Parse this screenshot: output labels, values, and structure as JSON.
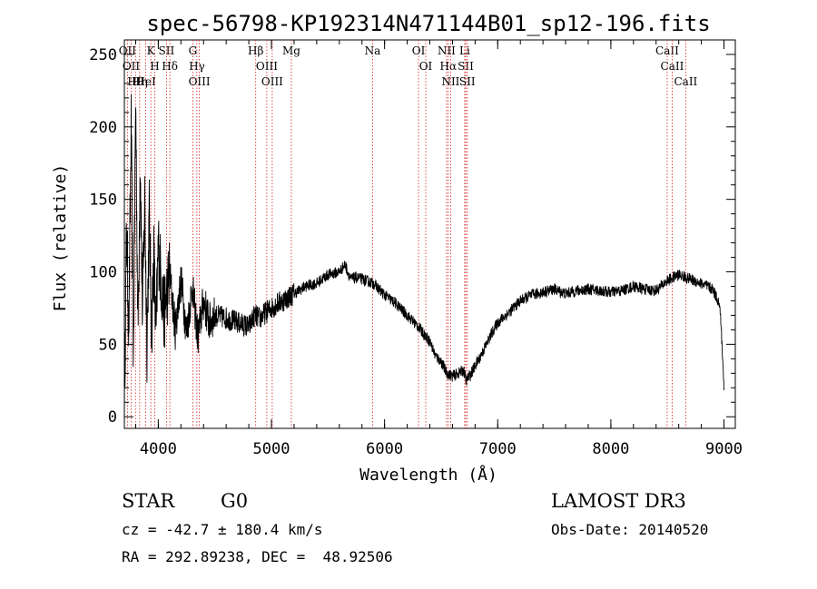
{
  "chart_data": {
    "type": "line",
    "title": "spec-56798-KP192314N471144B01_sp12-196.fits",
    "xlabel": "Wavelength (Å)",
    "ylabel": "Flux (relative)",
    "xlim": [
      3700,
      9100
    ],
    "ylim": [
      -8,
      260
    ],
    "x_ticks": [
      4000,
      5000,
      6000,
      7000,
      8000,
      9000
    ],
    "y_ticks": [
      0,
      50,
      100,
      150,
      200,
      250
    ],
    "grid": false,
    "series": [
      {
        "x": [
          3700,
          3720,
          3740,
          3760,
          3780,
          3800,
          3820,
          3840,
          3860,
          3880,
          3900,
          3920,
          3940,
          3960,
          3980,
          4000,
          4050,
          4100,
          4150,
          4200,
          4250,
          4300,
          4350,
          4400,
          4450,
          4500,
          4600,
          4700,
          4800,
          4850,
          4900,
          4950,
          5000,
          5050,
          5100,
          5200,
          5300,
          5400,
          5500,
          5600,
          5650,
          5700,
          5750,
          5800,
          5900,
          6000,
          6100,
          6200,
          6300,
          6400,
          6450,
          6500,
          6550,
          6600,
          6650,
          6700,
          6720,
          6750,
          6800,
          6850,
          6900,
          6950,
          7000,
          7100,
          7200,
          7300,
          7400,
          7500,
          7600,
          7700,
          7800,
          7900,
          8000,
          8100,
          8200,
          8300,
          8400,
          8500,
          8600,
          8700,
          8800,
          8900,
          8950,
          8970,
          9000
        ],
        "y": [
          10,
          130,
          60,
          200,
          40,
          220,
          60,
          180,
          70,
          150,
          50,
          140,
          60,
          110,
          55,
          120,
          70,
          100,
          60,
          95,
          58,
          90,
          55,
          80,
          65,
          70,
          68,
          65,
          62,
          70,
          68,
          72,
          75,
          78,
          80,
          85,
          90,
          92,
          98,
          100,
          105,
          95,
          96,
          95,
          92,
          84,
          78,
          70,
          62,
          52,
          42,
          38,
          30,
          28,
          30,
          32,
          25,
          28,
          35,
          42,
          50,
          58,
          65,
          72,
          80,
          84,
          86,
          88,
          85,
          87,
          88,
          87,
          86,
          87,
          90,
          88,
          87,
          94,
          98,
          95,
          92,
          88,
          80,
          70,
          20
        ],
        "color": "#000000"
      }
    ],
    "line_markers": [
      {
        "x": 3727,
        "label": "OII"
      },
      {
        "x": 3760,
        "label": "OII"
      },
      {
        "x": 3798,
        "label": "Hθ"
      },
      {
        "x": 3835,
        "label": "Hη"
      },
      {
        "x": 3889,
        "label": "HeI"
      },
      {
        "x": 3934,
        "label": "K"
      },
      {
        "x": 3969,
        "label": "H"
      },
      {
        "x": 4072,
        "label": "SII"
      },
      {
        "x": 4102,
        "label": "Hδ"
      },
      {
        "x": 4305,
        "label": "G"
      },
      {
        "x": 4341,
        "label": "Hγ"
      },
      {
        "x": 4363,
        "label": "OIII"
      },
      {
        "x": 4861,
        "label": "Hβ"
      },
      {
        "x": 4959,
        "label": "OIII"
      },
      {
        "x": 5007,
        "label": "OIII"
      },
      {
        "x": 5176,
        "label": "Mg"
      },
      {
        "x": 5894,
        "label": "Na"
      },
      {
        "x": 6300,
        "label": "OI"
      },
      {
        "x": 6364,
        "label": "OI"
      },
      {
        "x": 6548,
        "label": "NII"
      },
      {
        "x": 6563,
        "label": "Hα"
      },
      {
        "x": 6584,
        "label": "NII"
      },
      {
        "x": 6708,
        "label": "Li"
      },
      {
        "x": 6717,
        "label": "SII"
      },
      {
        "x": 6731,
        "label": "SII"
      },
      {
        "x": 8498,
        "label": "CaII"
      },
      {
        "x": 8542,
        "label": "CaII"
      },
      {
        "x": 8662,
        "label": "CaII"
      }
    ]
  },
  "info": {
    "object_class": "STAR",
    "subclass": "G0",
    "survey": "LAMOST DR3",
    "cz": "cz = -42.7 ± 180.4 km/s",
    "obs_date": "Obs-Date: 20140520",
    "coords": "RA = 292.89238, DEC =  48.92506"
  }
}
